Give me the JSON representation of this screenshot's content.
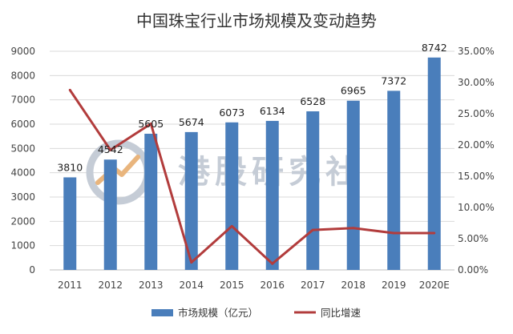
{
  "chart_data": {
    "type": "bar+line",
    "title": "中国珠宝行业市场规模及变动趋势",
    "categories": [
      "2011",
      "2012",
      "2013",
      "2014",
      "2015",
      "2016",
      "2017",
      "2018",
      "2019",
      "2020E"
    ],
    "series": [
      {
        "name": "市场规模（亿元）",
        "type": "bar",
        "axis": "left",
        "color": "#4a7ebb",
        "values": [
          3810,
          4542,
          5605,
          5674,
          6073,
          6134,
          6528,
          6965,
          7372,
          8742
        ]
      },
      {
        "name": "同比增速",
        "type": "line",
        "axis": "right",
        "color": "#b23c3c",
        "values": [
          0.288,
          0.192,
          0.234,
          0.012,
          0.07,
          0.01,
          0.064,
          0.067,
          0.059,
          0.059
        ]
      }
    ],
    "y_left": {
      "min": 0,
      "max": 9000,
      "step": 1000
    },
    "y_right": {
      "min": 0,
      "max": 0.35,
      "step": 0.05,
      "tick_labels": [
        "0.00%",
        "5.00%",
        "10.00%",
        "15.00%",
        "20.00%",
        "25.00%",
        "30.00%",
        "35.00%"
      ]
    },
    "grid": true,
    "legend_position": "bottom"
  },
  "watermark": {
    "text": "港股研究社",
    "color": "#c5ccd6"
  }
}
